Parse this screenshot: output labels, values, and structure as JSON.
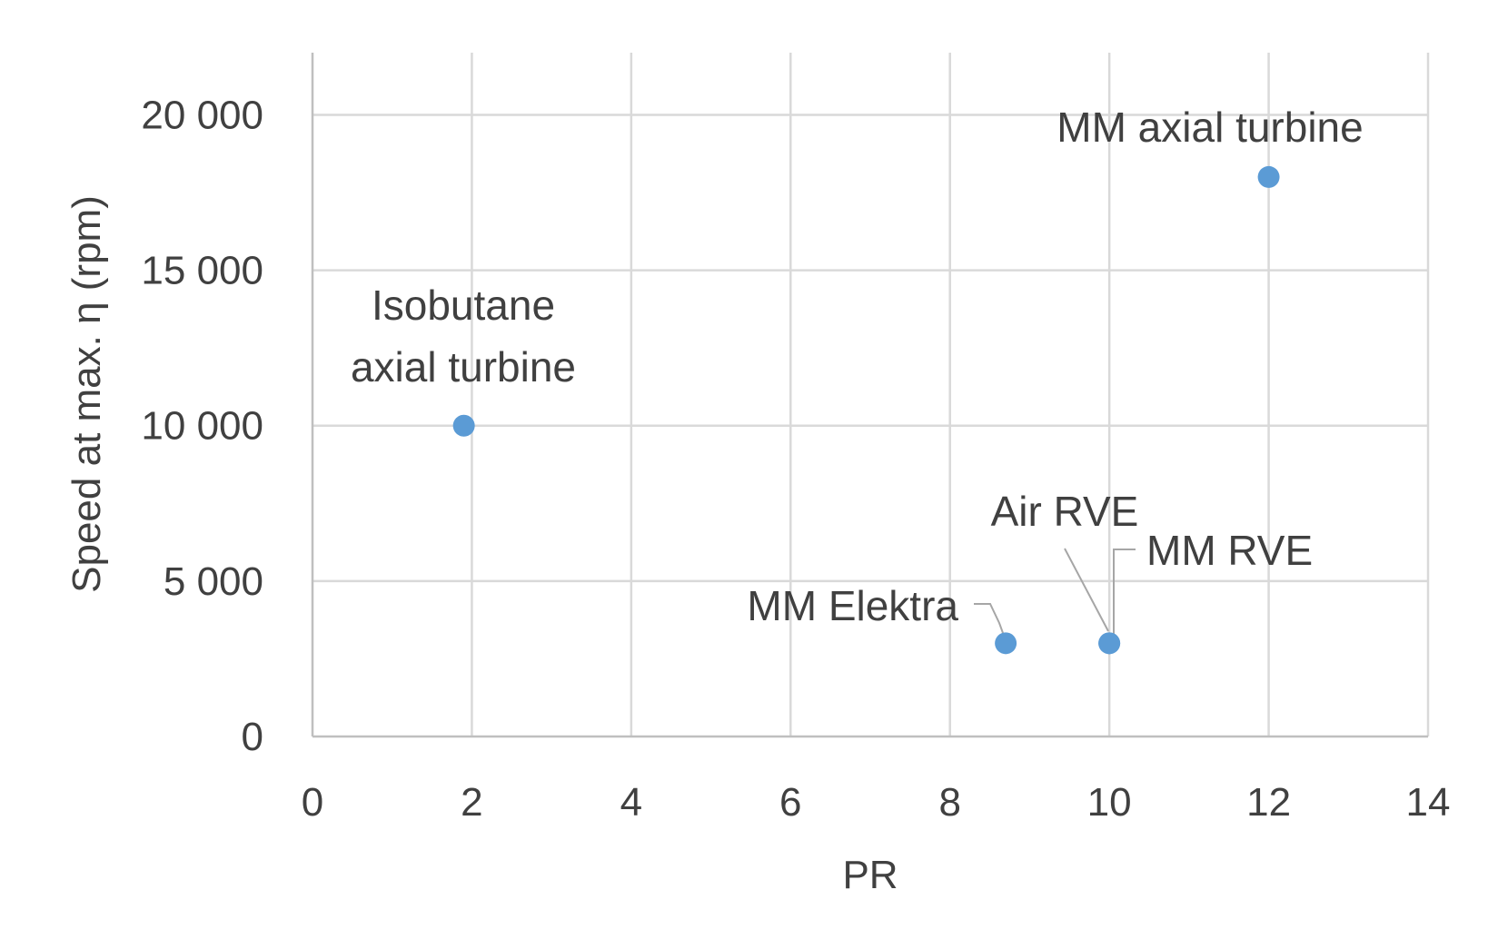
{
  "chart_data": {
    "type": "scatter",
    "xlabel": "PR",
    "ylabel": "Speed at max. η (rpm)",
    "xlim": [
      0,
      14
    ],
    "ylim": [
      0,
      20000
    ],
    "x_ticks": [
      {
        "value": 0,
        "label": "0"
      },
      {
        "value": 2,
        "label": "2"
      },
      {
        "value": 4,
        "label": "4"
      },
      {
        "value": 6,
        "label": "6"
      },
      {
        "value": 8,
        "label": "8"
      },
      {
        "value": 10,
        "label": "10"
      },
      {
        "value": 12,
        "label": "12"
      },
      {
        "value": 14,
        "label": "14"
      }
    ],
    "y_ticks": [
      {
        "value": 0,
        "label": "0"
      },
      {
        "value": 5000,
        "label": "5 000"
      },
      {
        "value": 10000,
        "label": "10 000"
      },
      {
        "value": 15000,
        "label": "15 000"
      },
      {
        "value": 20000,
        "label": "20 000"
      }
    ],
    "grid": true,
    "marker_color": "#5b9bd5",
    "points": [
      {
        "x": 1.9,
        "y": 10000,
        "label": [
          "Isobutane",
          "axial turbine"
        ]
      },
      {
        "x": 12,
        "y": 18000,
        "label": [
          "MM axial turbine"
        ]
      },
      {
        "x": 8.7,
        "y": 3000,
        "label": [
          "MM Elektra"
        ]
      },
      {
        "x": 10,
        "y": 3000,
        "label": [
          "Air RVE"
        ]
      },
      {
        "x": 10,
        "y": 3000,
        "label": [
          "MM RVE"
        ]
      }
    ]
  }
}
